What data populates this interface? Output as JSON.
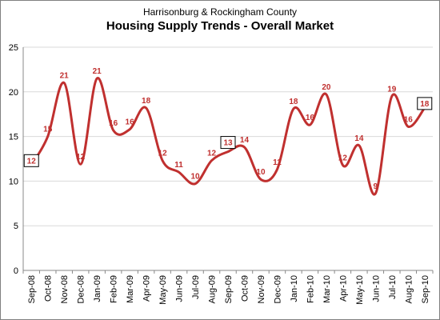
{
  "chart_data": {
    "type": "line",
    "subtitle": "Harrisonburg & Rockingham County",
    "title": "Housing Supply Trends - Overall Market",
    "categories": [
      "Sep-08",
      "Oct-08",
      "Nov-08",
      "Dec-08",
      "Jan-09",
      "Feb-09",
      "Mar-09",
      "Apr-09",
      "May-09",
      "Jun-09",
      "Jul-09",
      "Aug-09",
      "Sep-09",
      "Oct-09",
      "Nov-09",
      "Dec-09",
      "Jan-10",
      "Feb-10",
      "Mar-10",
      "Apr-10",
      "May-10",
      "Jun-10",
      "Jul-10",
      "Aug-10",
      "Sep-10"
    ],
    "values": [
      12,
      15,
      21,
      12,
      21,
      16,
      16,
      18,
      12,
      11,
      10,
      12,
      13,
      14,
      10,
      11,
      18,
      16,
      20,
      12,
      14,
      9,
      19,
      16,
      18
    ],
    "plotted_values": [
      11.8,
      15,
      21,
      11.9,
      21.5,
      15.7,
      15.8,
      18.2,
      12.3,
      11,
      9.7,
      12.3,
      13.3,
      13.8,
      10.2,
      11.3,
      18.1,
      16.3,
      19.7,
      11.8,
      14,
      8.6,
      19.5,
      16.1,
      18.2
    ],
    "boxed_labels": [
      0,
      12,
      24
    ],
    "ylim": [
      0,
      25
    ],
    "yticks": [
      0,
      5,
      10,
      15,
      20,
      25
    ],
    "grid": true,
    "legend": "none",
    "line_color": "#C0302F",
    "label_color": "#C0302F",
    "grid_color": "#D9D9D9",
    "axis_color": "#888888"
  }
}
